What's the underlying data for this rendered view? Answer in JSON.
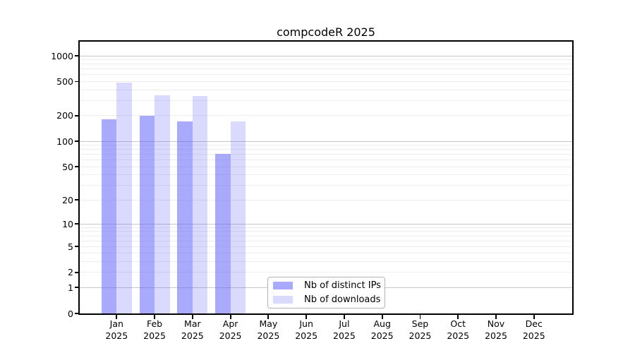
{
  "title": "compcodeR 2025",
  "chart_data": {
    "type": "bar",
    "title": "compcodeR 2025",
    "categories": [
      "Jan 2025",
      "Feb 2025",
      "Mar 2025",
      "Apr 2025",
      "May 2025",
      "Jun 2025",
      "Jul 2025",
      "Aug 2025",
      "Sep 2025",
      "Oct 2025",
      "Nov 2025",
      "Dec 2025"
    ],
    "series": [
      {
        "name": "Nb of distinct IPs",
        "color": "rgba(100,100,250,0.55)",
        "values": [
          181,
          200,
          172,
          71,
          null,
          null,
          null,
          null,
          null,
          null,
          null,
          null
        ]
      },
      {
        "name": "Nb of downloads",
        "color": "rgba(100,100,250,0.24)",
        "values": [
          489,
          346,
          337,
          172,
          null,
          null,
          null,
          null,
          null,
          null,
          null,
          null
        ]
      }
    ],
    "yscale": "log1p",
    "yticks": [
      0,
      1,
      2,
      5,
      10,
      20,
      50,
      100,
      200,
      500,
      1000
    ],
    "ylim": [
      0,
      1465
    ],
    "grid": {
      "show": true,
      "minor_color": "#ededed",
      "major_color": "#c6c6c6",
      "major_lines": [
        1,
        10,
        100,
        1000
      ]
    },
    "legend_position": "inside bottom, center-right",
    "axis_color": "#000000"
  }
}
